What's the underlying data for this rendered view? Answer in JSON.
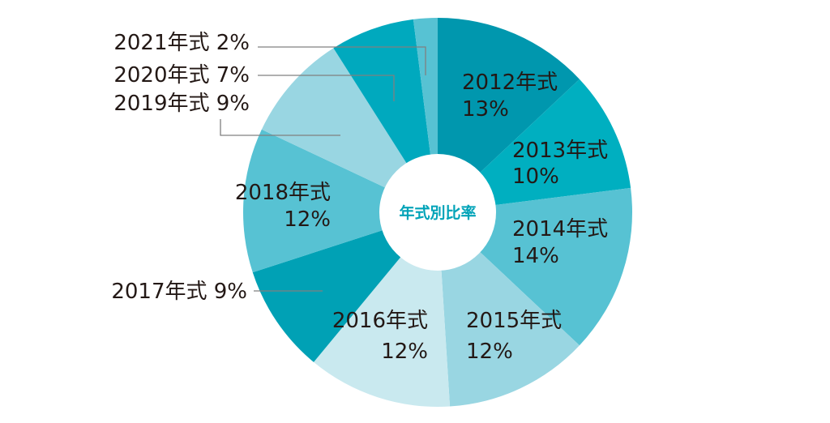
{
  "chart_data": {
    "type": "pie",
    "title": "",
    "center_label": "年式別比率",
    "unit": "%",
    "categories": [
      "2012年式",
      "2013年式",
      "2014年式",
      "2015年式",
      "2016年式",
      "2017年式",
      "2018年式",
      "2019年式",
      "2020年式",
      "2021年式"
    ],
    "values": [
      13,
      10,
      14,
      12,
      12,
      9,
      12,
      9,
      7,
      2
    ],
    "value_labels": [
      "13%",
      "10%",
      "14%",
      "12%",
      "12%",
      "9%",
      "12%",
      "9%",
      "7%",
      "2%"
    ],
    "colors": [
      "#0097ae",
      "#00afc0",
      "#57c2d3",
      "#99d6e2",
      "#c9e9ef",
      "#00a1b5",
      "#57c2d3",
      "#99d6e2",
      "#00a9be",
      "#57c2d3"
    ],
    "center_label_color": "#00a3b8",
    "label_color": "#231815",
    "leader_line_color": "#808080",
    "legend": false
  }
}
